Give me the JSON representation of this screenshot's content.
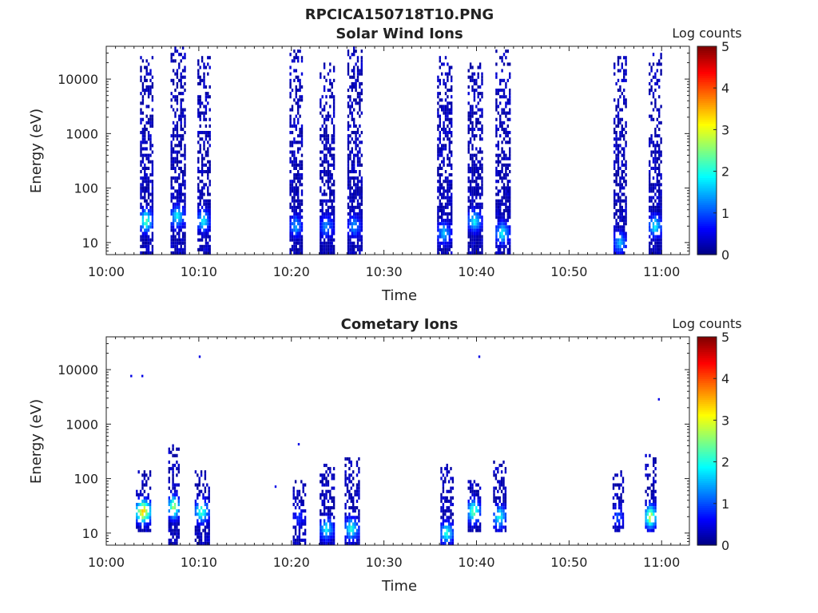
{
  "figure_title": "RPCICA150718T10.PNG",
  "chart_data": [
    {
      "type": "heatmap",
      "title": "Solar Wind Ions",
      "xlabel": "Time",
      "ylabel": "Energy (eV)",
      "x_ticks": [
        "10:00",
        "10:10",
        "10:20",
        "10:30",
        "10:40",
        "10:50",
        "11:00"
      ],
      "x_range_minutes": [
        0,
        63
      ],
      "y_ticks": [
        "10",
        "100",
        "1000",
        "10000"
      ],
      "y_range_eV": [
        6,
        40000
      ],
      "y_scale": "log",
      "colorbar": {
        "label": "Log counts",
        "ticks": [
          "0",
          "1",
          "2",
          "3",
          "4",
          "5"
        ],
        "range": [
          0,
          5
        ],
        "colormap": "jet"
      },
      "bursts": [
        {
          "t": 4.3,
          "w": 1.3,
          "emin": 6,
          "emax": 25000,
          "peak": 2.4,
          "peak_e": 25
        },
        {
          "t": 7.7,
          "w": 1.5,
          "emin": 6,
          "emax": 40000,
          "peak": 1.8,
          "peak_e": 30
        },
        {
          "t": 10.5,
          "w": 1.3,
          "emin": 6,
          "emax": 30000,
          "peak": 1.8,
          "peak_e": 25
        },
        {
          "t": 20.5,
          "w": 1.4,
          "emin": 6,
          "emax": 35000,
          "peak": 1.4,
          "peak_e": 20
        },
        {
          "t": 23.8,
          "w": 1.5,
          "emin": 6,
          "emax": 20000,
          "peak": 1.3,
          "peak_e": 20
        },
        {
          "t": 26.8,
          "w": 1.5,
          "emin": 6,
          "emax": 40000,
          "peak": 1.3,
          "peak_e": 20
        },
        {
          "t": 36.5,
          "w": 1.5,
          "emin": 6,
          "emax": 25000,
          "peak": 1.5,
          "peak_e": 15
        },
        {
          "t": 39.8,
          "w": 1.5,
          "emin": 6,
          "emax": 20000,
          "peak": 1.8,
          "peak_e": 25
        },
        {
          "t": 42.8,
          "w": 1.5,
          "emin": 6,
          "emax": 35000,
          "peak": 1.8,
          "peak_e": 15
        },
        {
          "t": 55.5,
          "w": 1.4,
          "emin": 6,
          "emax": 25000,
          "peak": 1.5,
          "peak_e": 10
        },
        {
          "t": 59.3,
          "w": 1.4,
          "emin": 6,
          "emax": 30000,
          "peak": 1.8,
          "peak_e": 20
        }
      ]
    },
    {
      "type": "heatmap",
      "title": "Cometary Ions",
      "xlabel": "Time",
      "ylabel": "Energy (eV)",
      "x_ticks": [
        "10:00",
        "10:10",
        "10:20",
        "10:30",
        "10:40",
        "10:50",
        "11:00"
      ],
      "x_range_minutes": [
        0,
        63
      ],
      "y_ticks": [
        "10",
        "100",
        "1000",
        "10000"
      ],
      "y_range_eV": [
        6,
        40000
      ],
      "y_scale": "log",
      "colorbar": {
        "label": "Log counts",
        "ticks": [
          "0",
          "1",
          "2",
          "3",
          "4",
          "5"
        ],
        "range": [
          0,
          5
        ],
        "colormap": "jet"
      },
      "bursts": [
        {
          "t": 4.0,
          "w": 1.6,
          "emin": 10,
          "emax": 150,
          "peak": 3.5,
          "peak_e": 25
        },
        {
          "t": 7.3,
          "w": 1.2,
          "emin": 6,
          "emax": 400,
          "peak": 2.8,
          "peak_e": 30
        },
        {
          "t": 10.3,
          "w": 1.5,
          "emin": 6,
          "emax": 150,
          "peak": 2.2,
          "peak_e": 25
        },
        {
          "t": 20.8,
          "w": 1.3,
          "emin": 6,
          "emax": 100,
          "peak": 0.8,
          "peak_e": 20
        },
        {
          "t": 23.8,
          "w": 1.5,
          "emin": 6,
          "emax": 200,
          "peak": 1.8,
          "peak_e": 12
        },
        {
          "t": 26.5,
          "w": 1.5,
          "emin": 6,
          "emax": 250,
          "peak": 2.0,
          "peak_e": 12
        },
        {
          "t": 36.8,
          "w": 1.4,
          "emin": 6,
          "emax": 200,
          "peak": 2.0,
          "peak_e": 10
        },
        {
          "t": 39.7,
          "w": 1.3,
          "emin": 10,
          "emax": 100,
          "peak": 2.5,
          "peak_e": 25
        },
        {
          "t": 42.5,
          "w": 1.4,
          "emin": 10,
          "emax": 250,
          "peak": 2.0,
          "peak_e": 20
        },
        {
          "t": 55.3,
          "w": 1.2,
          "emin": 10,
          "emax": 150,
          "peak": 1.0,
          "peak_e": 20
        },
        {
          "t": 58.8,
          "w": 1.2,
          "emin": 10,
          "emax": 300,
          "peak": 3.0,
          "peak_e": 20
        }
      ],
      "outliers": [
        {
          "t": 2.7,
          "e": 7500,
          "v": 0.5
        },
        {
          "t": 3.9,
          "e": 7500,
          "v": 0.5
        },
        {
          "t": 10.1,
          "e": 17000,
          "v": 0.5
        },
        {
          "t": 40.3,
          "e": 17000,
          "v": 0.5
        },
        {
          "t": 59.7,
          "e": 2800,
          "v": 0.5
        },
        {
          "t": 20.8,
          "e": 420,
          "v": 0.5
        },
        {
          "t": 18.3,
          "e": 70,
          "v": 0.5
        }
      ]
    }
  ]
}
